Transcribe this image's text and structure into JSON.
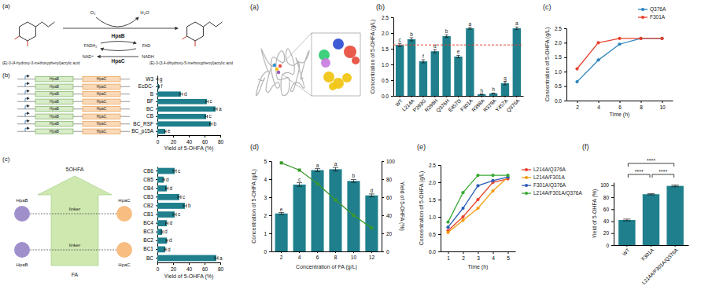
{
  "chart_data": [
    {
      "type": "bar",
      "orientation": "horizontal",
      "x_label": "Yield of 5-OHFA (%)",
      "categories": [
        "W3",
        "EcDC-",
        "B",
        "BF",
        "BC",
        "CB",
        "BC_RSF",
        "BC_p15A"
      ],
      "values": [
        0.5,
        2,
        30,
        63,
        74,
        62,
        68,
        10
      ],
      "errors": [
        0.3,
        0.5,
        2,
        1.5,
        2,
        1.5,
        1.5,
        1
      ],
      "annotations": [
        "g",
        "f",
        "d",
        "c",
        "a",
        "c",
        "b",
        "e"
      ],
      "color": "#1f7f8c",
      "xlim": [
        0,
        80
      ],
      "xticks": [
        0,
        20,
        40,
        60,
        80
      ]
    },
    {
      "type": "bar",
      "orientation": "horizontal",
      "x_label": "Yield of 5-OHFA (%)",
      "categories": [
        "CB6",
        "CB5",
        "CB4",
        "CB3",
        "CB2",
        "CB1",
        "BC4",
        "BC3",
        "BC2",
        "BC1",
        "BC"
      ],
      "values": [
        22,
        8,
        12,
        28,
        35,
        22,
        12,
        6,
        12,
        10,
        75
      ],
      "errors": [
        2,
        1,
        1.5,
        2,
        2,
        2,
        1.5,
        1,
        1,
        1,
        2
      ],
      "annotations": [
        "c",
        "d",
        "d",
        "c",
        "b",
        "c",
        "d",
        "d",
        "d",
        "d",
        "a"
      ],
      "color": "#1f7f8c",
      "xlim": [
        0,
        80
      ],
      "xticks": [
        0,
        20,
        40,
        60,
        80
      ]
    },
    {
      "type": "bar",
      "title": "(b)",
      "y_label": "Concentration of 5-OHFA (g/L)",
      "categories": [
        "WT",
        "L214A",
        "P293G",
        "R299H",
        "Q376H",
        "E457D",
        "F301A",
        "R398A",
        "R379A",
        "Y457A",
        "Q376A"
      ],
      "values": [
        1.62,
        1.8,
        1.1,
        1.42,
        1.9,
        1.25,
        2.15,
        0.05,
        0.08,
        0.4,
        2.15
      ],
      "errors": [
        0.05,
        0.05,
        0.05,
        0.05,
        0.04,
        0.04,
        0.03,
        0.01,
        0.01,
        0.05,
        0.04
      ],
      "annotations": [
        "c",
        "b",
        "f",
        "d",
        "b",
        "e",
        "a",
        "h",
        "h",
        "g",
        "a"
      ],
      "reference_value": 1.62,
      "color": "#1f7f8c",
      "ylim": [
        0,
        2.5
      ],
      "yticks": [
        {
          "value": 0,
          "label": "0.0"
        },
        0.5,
        {
          "value": 1,
          "label": "1.0"
        },
        1.5,
        {
          "value": 2,
          "label": "2.0"
        },
        2.5
      ]
    },
    {
      "type": "line",
      "title": "(c)",
      "x_label": "Time (h)",
      "y_label": "Concentration of 5-OHFA (g/L)",
      "x": [
        2,
        4,
        6,
        8,
        10
      ],
      "xlim": [
        1,
        11
      ],
      "xticks": [
        2,
        4,
        6,
        8,
        10
      ],
      "ylim": [
        0,
        2.5
      ],
      "yticks": [
        {
          "value": 0,
          "label": "0.0"
        },
        0.5,
        {
          "value": 1,
          "label": "1.0"
        },
        1.5,
        {
          "value": 2,
          "label": "2.0"
        },
        2.5
      ],
      "legend": "top-right",
      "series": [
        {
          "name": "Q376A",
          "color": "#2b83ba",
          "marker": "circle",
          "values": [
            0.65,
            1.4,
            1.95,
            2.15,
            2.15
          ]
        },
        {
          "name": "F301A",
          "color": "#e8412c",
          "marker": "circle",
          "values": [
            1.1,
            2.0,
            2.15,
            2.15,
            2.15
          ]
        }
      ]
    },
    {
      "type": "bar",
      "title": "(d)",
      "x_label": "Concentration of FA (g/L)",
      "y_label": "Concentration of 5-OHFA (g/L)",
      "y2_label": "Yield of 5-OHFA (%)",
      "categories": [
        "2",
        "4",
        "6",
        "8",
        "10",
        "12"
      ],
      "annotations": [
        "e",
        "c",
        "a",
        "a",
        "b",
        "d"
      ],
      "ylim": [
        0,
        5
      ],
      "yticks": [
        0,
        1,
        2,
        3,
        4,
        5
      ],
      "y2lim": [
        0,
        100
      ],
      "y2ticks": [
        0,
        20,
        40,
        60,
        80,
        100
      ],
      "series": [
        {
          "type": "bar",
          "color": "#1f7f8c",
          "values": [
            2.1,
            3.7,
            4.5,
            4.55,
            3.9,
            3.1
          ],
          "errors": [
            0.05,
            0.1,
            0.08,
            0.1,
            0.08,
            0.08
          ]
        },
        {
          "type": "line",
          "axis": "y2",
          "color": "#3a9a2a",
          "marker": "square",
          "values": [
            98,
            90,
            75,
            57,
            40,
            26
          ]
        }
      ]
    },
    {
      "type": "line",
      "title": "(e)",
      "x_label": "Time (h)",
      "y_label": "Concentration of 5-OHFA (g/L)",
      "x": [
        1,
        2,
        3,
        4,
        5
      ],
      "xlim": [
        0.5,
        5.5
      ],
      "xticks": [
        1,
        2,
        3,
        4,
        5
      ],
      "ylim": [
        0,
        2.5
      ],
      "yticks": [
        {
          "value": 0,
          "label": "0.0"
        },
        0.5,
        {
          "value": 1,
          "label": "1.0"
        },
        1.5,
        {
          "value": 2,
          "label": "2.0"
        },
        2.5
      ],
      "legend": "right",
      "series": [
        {
          "name": "L214A/Q376A",
          "color": "#e8412c",
          "marker": "circle",
          "values": [
            0.6,
            1.0,
            1.5,
            2.0,
            2.1
          ]
        },
        {
          "name": "L214A/F301A",
          "color": "#f39c12",
          "marker": "circle",
          "values": [
            0.55,
            0.9,
            1.25,
            1.75,
            2.15
          ]
        },
        {
          "name": "F301A/Q376A",
          "color": "#2c5fb8",
          "marker": "circle",
          "values": [
            0.7,
            1.25,
            1.9,
            2.05,
            2.15
          ]
        },
        {
          "name": "L214A/F301A/Q376A",
          "color": "#3aaa35",
          "marker": "circle",
          "values": [
            0.85,
            1.7,
            2.2,
            2.2,
            2.2
          ]
        }
      ]
    },
    {
      "type": "bar",
      "title": "(f)",
      "y_label": "Yield of 5-OHFA (%)",
      "categories": [
        "WT",
        "F301A",
        "L214A/F301A/Q376A"
      ],
      "values": [
        42,
        85,
        99
      ],
      "errors": [
        1.5,
        1,
        1.5
      ],
      "color": "#1f7f8c",
      "ylim": [
        0,
        105
      ],
      "yticks": [
        0,
        20,
        40,
        60,
        80,
        100
      ],
      "comparisons": [
        {
          "groups": [
            "WT",
            "L214A/F301A/Q376A"
          ],
          "label": "****"
        },
        {
          "groups": [
            "WT",
            "F301A"
          ],
          "label": "****"
        },
        {
          "groups": [
            "F301A",
            "L214A/F301A/Q376A"
          ],
          "label": "****"
        }
      ]
    }
  ],
  "diagrams": {
    "reaction": {
      "label": "(a)",
      "substrate": "(E)-3-(4-hydroxy-3-methoxyphenyl)acrylic acid",
      "product": "(E)-3-(3,4-dihydroxy-5-methoxyphenyl)acrylic acid",
      "oxygen": [
        "O₂",
        "H₂O"
      ],
      "flavin": [
        "FADH₂",
        "FAD"
      ],
      "nad": [
        "NAD⁺",
        "NADH"
      ],
      "enzymes": [
        "HpaB",
        "HpaC"
      ]
    },
    "constructs": {
      "label": "(b)",
      "genes": [
        "HpaB",
        "HpaC"
      ]
    },
    "fusion": {
      "label": "(c)",
      "product": "5OHFA",
      "substrate": "FA",
      "enzymes": [
        "HpaB",
        "HpaC"
      ],
      "linker": "linker"
    },
    "structure": {
      "label": "(a)"
    }
  }
}
